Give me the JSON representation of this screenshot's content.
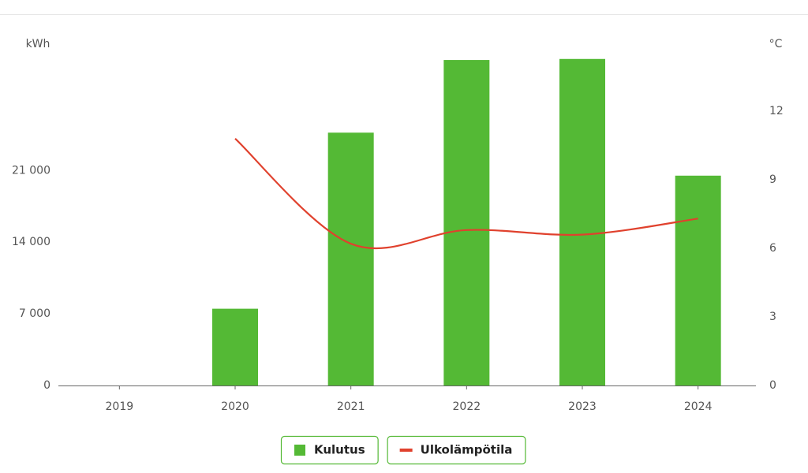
{
  "chart_data": {
    "type": "bar-line",
    "y_label": "kWh",
    "y2_label": "°C",
    "categories": [
      "2019",
      "2020",
      "2021",
      "2022",
      "2023",
      "2024"
    ],
    "series": [
      {
        "name": "Kulutus",
        "color": "#54b935",
        "type": "bar",
        "values": [
          null,
          7500,
          24700,
          31800,
          31900,
          20500
        ]
      },
      {
        "name": "Ulkolämpötila",
        "color": "#e0412d",
        "type": "line",
        "axis": "y2",
        "values": [
          null,
          10.8,
          6.2,
          6.8,
          6.6,
          7.3
        ]
      }
    ],
    "ylim": [
      0,
      33500
    ],
    "yticks": [
      0,
      {
        "value": 7000,
        "label": "7 000"
      },
      {
        "value": 14000,
        "label": "14 000"
      },
      {
        "value": 21000,
        "label": "21 000"
      }
    ],
    "y2lim": [
      0,
      15
    ],
    "y2ticks": [
      0,
      3,
      6,
      9,
      12
    ]
  }
}
